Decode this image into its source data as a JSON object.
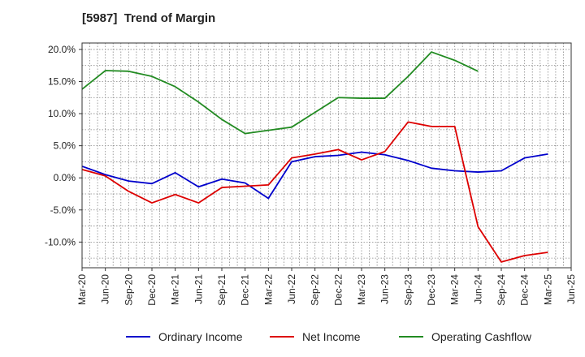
{
  "chart_data": {
    "type": "line",
    "title": "[5987]  Trend of Margin",
    "xlabel": "",
    "ylabel": "",
    "categories": [
      "Mar-20",
      "Jun-20",
      "Sep-20",
      "Dec-20",
      "Mar-21",
      "Jun-21",
      "Sep-21",
      "Dec-21",
      "Mar-22",
      "Jun-22",
      "Sep-22",
      "Dec-22",
      "Mar-23",
      "Jun-23",
      "Sep-23",
      "Dec-23",
      "Mar-24",
      "Jun-24",
      "Sep-24",
      "Dec-24",
      "Mar-25",
      "Jun-25"
    ],
    "ylim": [
      -14,
      21
    ],
    "yticks": [
      20,
      15,
      10,
      5,
      0,
      -5,
      -10
    ],
    "ytick_labels": [
      "20.0%",
      "15.0%",
      "10.0%",
      "5.0%",
      "0.0%",
      "-5.0%",
      "-10.0%"
    ],
    "grid": true,
    "legend_position": "bottom",
    "series": [
      {
        "name": "Ordinary Income",
        "color": "#0000cc",
        "values": [
          1.8,
          0.5,
          -0.5,
          -0.9,
          0.8,
          -1.4,
          -0.2,
          -0.8,
          -3.2,
          2.5,
          3.3,
          3.5,
          4.0,
          3.6,
          2.7,
          1.5,
          1.1,
          0.9,
          1.1,
          3.1,
          3.7,
          null
        ]
      },
      {
        "name": "Net Income",
        "color": "#dd0000",
        "values": [
          1.3,
          0.3,
          -2.1,
          -3.9,
          -2.6,
          -3.9,
          -1.5,
          -1.3,
          -1.1,
          3.1,
          3.7,
          4.4,
          2.8,
          4.1,
          8.7,
          8.0,
          8.0,
          -7.6,
          -13.1,
          -12.1,
          -11.6,
          null
        ]
      },
      {
        "name": "Operating Cashflow",
        "color": "#228b22",
        "values": [
          13.8,
          16.7,
          16.6,
          15.8,
          14.2,
          11.8,
          9.1,
          6.9,
          7.4,
          7.9,
          10.2,
          12.5,
          12.4,
          12.4,
          15.8,
          19.6,
          18.3,
          16.6,
          null,
          null,
          null,
          null
        ]
      }
    ]
  }
}
